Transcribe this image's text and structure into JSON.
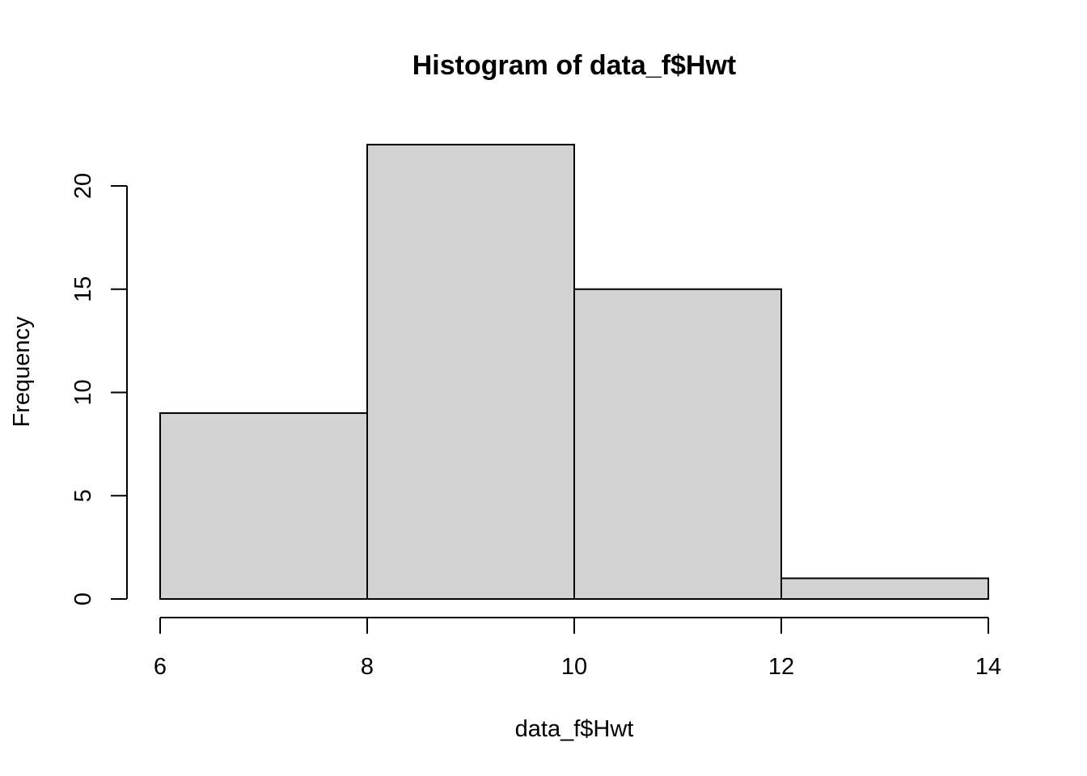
{
  "chart_data": {
    "type": "bar",
    "title": "Histogram of data_f$Hwt",
    "xlabel": "data_f$Hwt",
    "ylabel": "Frequency",
    "bins": [
      {
        "start": 6,
        "end": 8,
        "count": 9
      },
      {
        "start": 8,
        "end": 10,
        "count": 22
      },
      {
        "start": 10,
        "end": 12,
        "count": 15
      },
      {
        "start": 12,
        "end": 14,
        "count": 1
      }
    ],
    "x_ticks": [
      6,
      8,
      10,
      12,
      14
    ],
    "y_ticks": [
      0,
      5,
      10,
      15,
      20
    ],
    "xlim": [
      6,
      14
    ],
    "ylim": [
      0,
      22
    ],
    "grid": false,
    "bar_color": "#d3d3d3",
    "border_color": "#000000"
  }
}
